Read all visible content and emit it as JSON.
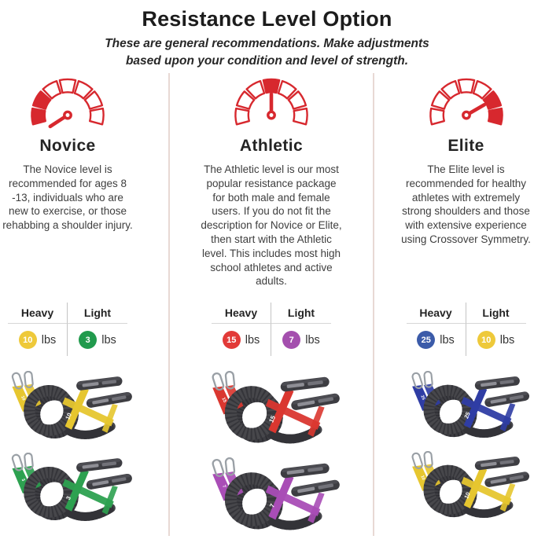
{
  "theme": {
    "accent_red": "#d7282e",
    "divider_pink": "#e8d9d4",
    "coil_gray": "#47474b",
    "handle_gray": "#3d3d42"
  },
  "header": {
    "title": "Resistance Level Option",
    "subtitle": "These are general recommendations. Make adjustments based upon your condition and level of strength."
  },
  "columns": [
    {
      "title": "Novice",
      "description": "The Novice level is recommended for ages 8 -13, individuals who are new to exercise, or those rehabbing a shoulder injury.",
      "gauge": {
        "level": "low",
        "needle_angle": 213,
        "filled_segments": [
          0,
          1
        ]
      },
      "weights": {
        "heavy_label": "Heavy",
        "light_label": "Light",
        "heavy": {
          "value": "10",
          "unit": "lbs",
          "color": "#eec93a"
        },
        "light": {
          "value": "3",
          "unit": "lbs",
          "color": "#219a4d"
        }
      },
      "products": [
        {
          "lbs": "10",
          "color": "#e6c62f"
        },
        {
          "lbs": "3",
          "color": "#2da150"
        }
      ]
    },
    {
      "title": "Athletic",
      "description": "The Athletic level is our most popular resistance package for both male and female users. If you do not fit the description for Novice or Elite, then start with the Athletic level. This includes most high school athletes and active adults.",
      "gauge": {
        "level": "medium",
        "needle_angle": 90,
        "filled_segments": [
          3
        ]
      },
      "weights": {
        "heavy_label": "Heavy",
        "light_label": "Light",
        "heavy": {
          "value": "15",
          "unit": "lbs",
          "color": "#e23a38"
        },
        "light": {
          "value": "7",
          "unit": "lbs",
          "color": "#a44fae"
        }
      },
      "products": [
        {
          "lbs": "15",
          "color": "#da3730"
        },
        {
          "lbs": "7",
          "color": "#a94db6"
        }
      ]
    },
    {
      "title": "Elite",
      "description": "The Elite level is recommended for healthy athletes with extremely strong shoulders and those with extensive experience using Crossover Symmetry.",
      "gauge": {
        "level": "high",
        "needle_angle": 30,
        "filled_segments": [
          5,
          6
        ]
      },
      "weights": {
        "heavy_label": "Heavy",
        "light_label": "Light",
        "heavy": {
          "value": "25",
          "unit": "lbs",
          "color": "#3b5ba9"
        },
        "light": {
          "value": "10",
          "unit": "lbs",
          "color": "#eec93a"
        }
      },
      "products": [
        {
          "lbs": "25",
          "color": "#2f3da4"
        },
        {
          "lbs": "10",
          "color": "#e6c62f"
        }
      ]
    }
  ]
}
